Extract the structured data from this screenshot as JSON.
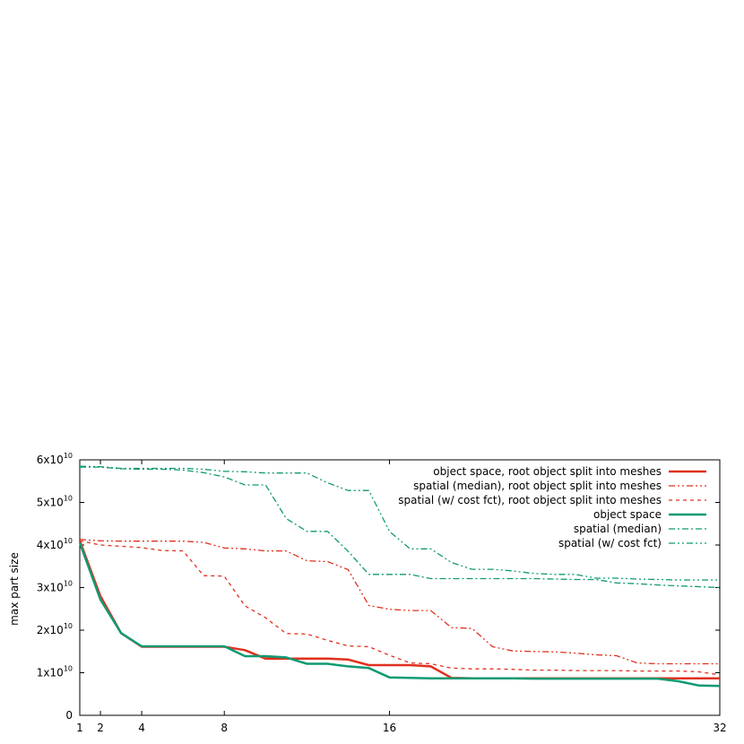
{
  "chart_data": {
    "type": "line",
    "title": "",
    "xlabel": "",
    "ylabel": "max part size",
    "xlim": [
      1,
      32
    ],
    "ylim": [
      0,
      60000000000.0
    ],
    "xticks": [
      1,
      2,
      4,
      8,
      16,
      32
    ],
    "yticks": [
      {
        "value": 0,
        "mantissa": "0",
        "exp": ""
      },
      {
        "value": 10000000000.0,
        "mantissa": "1x10",
        "exp": "10"
      },
      {
        "value": 20000000000.0,
        "mantissa": "2x10",
        "exp": "10"
      },
      {
        "value": 30000000000.0,
        "mantissa": "3x10",
        "exp": "10"
      },
      {
        "value": 40000000000.0,
        "mantissa": "4x10",
        "exp": "10"
      },
      {
        "value": 50000000000.0,
        "mantissa": "5x10",
        "exp": "10"
      },
      {
        "value": 60000000000.0,
        "mantissa": "6x10",
        "exp": "10"
      }
    ],
    "legend_position": "top-right",
    "series": [
      {
        "name": "object space, root object split into meshes",
        "color": "#e0301e",
        "dash": "solid",
        "width": 2.5,
        "x": [
          1,
          2,
          3,
          4,
          5,
          6,
          7,
          8,
          9,
          10,
          11,
          12,
          13,
          14,
          15,
          16,
          17,
          18,
          19,
          20,
          21,
          22,
          23,
          24,
          25,
          26,
          27,
          28,
          29,
          30,
          31,
          32
        ],
        "y": [
          41000000000.0,
          28000000000.0,
          19300000000.0,
          16100000000.0,
          16100000000.0,
          16100000000.0,
          16100000000.0,
          16100000000.0,
          15300000000.0,
          13300000000.0,
          13300000000.0,
          13300000000.0,
          13300000000.0,
          13100000000.0,
          11800000000.0,
          11800000000.0,
          11800000000.0,
          11500000000.0,
          8800000000.0,
          8700000000.0,
          8700000000.0,
          8700000000.0,
          8700000000.0,
          8700000000.0,
          8700000000.0,
          8700000000.0,
          8700000000.0,
          8700000000.0,
          8700000000.0,
          8700000000.0,
          8700000000.0,
          8700000000.0
        ]
      },
      {
        "name": "spatial (median), root object split into meshes",
        "color": "#e0301e",
        "dash": "7,3,2,3,2,3",
        "width": 1.3,
        "x": [
          1,
          2,
          3,
          4,
          5,
          6,
          7,
          8,
          9,
          10,
          11,
          12,
          13,
          14,
          15,
          16,
          17,
          18,
          19,
          20,
          21,
          22,
          23,
          24,
          25,
          26,
          27,
          28,
          29,
          30,
          31,
          32
        ],
        "y": [
          41300000000.0,
          41000000000.0,
          40900000000.0,
          40900000000.0,
          40900000000.0,
          40900000000.0,
          40600000000.0,
          39300000000.0,
          39100000000.0,
          38600000000.0,
          38600000000.0,
          36300000000.0,
          36100000000.0,
          34200000000.0,
          25800000000.0,
          24900000000.0,
          24600000000.0,
          24600000000.0,
          20600000000.0,
          20400000000.0,
          16100000000.0,
          15100000000.0,
          15000000000.0,
          14900000000.0,
          14600000000.0,
          14200000000.0,
          14000000000.0,
          12300000000.0,
          12100000000.0,
          12100000000.0,
          12100000000.0,
          12100000000.0
        ]
      },
      {
        "name": "spatial (w/ cost fct), root object split into meshes",
        "color": "#e0301e",
        "dash": "4,4",
        "width": 1.3,
        "x": [
          1,
          2,
          3,
          4,
          5,
          6,
          7,
          8,
          9,
          10,
          11,
          12,
          13,
          14,
          15,
          16,
          17,
          18,
          19,
          20,
          21,
          22,
          23,
          24,
          25,
          26,
          27,
          28,
          29,
          30,
          31,
          32
        ],
        "y": [
          41000000000.0,
          40000000000.0,
          39700000000.0,
          39400000000.0,
          38700000000.0,
          38600000000.0,
          32800000000.0,
          32700000000.0,
          25700000000.0,
          22900000000.0,
          19200000000.0,
          19100000000.0,
          17600000000.0,
          16300000000.0,
          16100000000.0,
          14100000000.0,
          12300000000.0,
          12100000000.0,
          11100000000.0,
          10900000000.0,
          10900000000.0,
          10800000000.0,
          10600000000.0,
          10600000000.0,
          10500000000.0,
          10500000000.0,
          10500000000.0,
          10400000000.0,
          10400000000.0,
          10400000000.0,
          10200000000.0,
          9500000000.0
        ]
      },
      {
        "name": "object space",
        "color": "#0f9a73",
        "dash": "solid",
        "width": 2.5,
        "x": [
          1,
          2,
          3,
          4,
          5,
          6,
          7,
          8,
          9,
          10,
          11,
          12,
          13,
          14,
          15,
          16,
          17,
          18,
          19,
          20,
          21,
          22,
          23,
          24,
          25,
          26,
          27,
          28,
          29,
          30,
          31,
          32
        ],
        "y": [
          40500000000.0,
          27200000000.0,
          19300000000.0,
          16200000000.0,
          16200000000.0,
          16200000000.0,
          16200000000.0,
          16200000000.0,
          13900000000.0,
          13900000000.0,
          13600000000.0,
          12100000000.0,
          12100000000.0,
          11500000000.0,
          11100000000.0,
          8900000000.0,
          8800000000.0,
          8700000000.0,
          8700000000.0,
          8700000000.0,
          8700000000.0,
          8700000000.0,
          8600000000.0,
          8600000000.0,
          8600000000.0,
          8600000000.0,
          8600000000.0,
          8600000000.0,
          8600000000.0,
          8000000000.0,
          7000000000.0,
          6900000000.0
        ]
      },
      {
        "name": "spatial (median)",
        "color": "#0f9a73",
        "dash": "7,3,2,3",
        "width": 1.3,
        "x": [
          1,
          2,
          3,
          4,
          5,
          6,
          7,
          8,
          9,
          10,
          11,
          12,
          13,
          14,
          15,
          16,
          17,
          18,
          19,
          20,
          21,
          22,
          23,
          24,
          25,
          26,
          27,
          28,
          29,
          30,
          31,
          32
        ],
        "y": [
          58300000000.0,
          58300000000.0,
          57900000000.0,
          57800000000.0,
          57800000000.0,
          57600000000.0,
          57000000000.0,
          56000000000.0,
          54100000000.0,
          54100000000.0,
          46200000000.0,
          43200000000.0,
          43200000000.0,
          38500000000.0,
          33100000000.0,
          33100000000.0,
          33100000000.0,
          32100000000.0,
          32100000000.0,
          32100000000.0,
          32100000000.0,
          32100000000.0,
          32100000000.0,
          32000000000.0,
          31900000000.0,
          31900000000.0,
          31100000000.0,
          30900000000.0,
          30600000000.0,
          30400000000.0,
          30200000000.0,
          30000000000.0
        ]
      },
      {
        "name": "spatial (w/ cost fct)",
        "color": "#0f9a73",
        "dash": "7,3,2,3,2,3",
        "width": 1.3,
        "x": [
          1,
          2,
          3,
          4,
          5,
          6,
          7,
          8,
          9,
          10,
          11,
          12,
          13,
          14,
          15,
          16,
          17,
          18,
          19,
          20,
          21,
          22,
          23,
          24,
          25,
          26,
          27,
          28,
          29,
          30,
          31,
          32
        ],
        "y": [
          58500000000.0,
          58400000000.0,
          58000000000.0,
          58000000000.0,
          58000000000.0,
          58000000000.0,
          57800000000.0,
          57300000000.0,
          57200000000.0,
          56900000000.0,
          56900000000.0,
          56900000000.0,
          54600000000.0,
          52800000000.0,
          52800000000.0,
          43200000000.0,
          39100000000.0,
          39100000000.0,
          35900000000.0,
          34300000000.0,
          34300000000.0,
          33900000000.0,
          33300000000.0,
          33100000000.0,
          33100000000.0,
          32200000000.0,
          32200000000.0,
          32000000000.0,
          31900000000.0,
          31800000000.0,
          31800000000.0,
          31800000000.0
        ]
      }
    ]
  }
}
